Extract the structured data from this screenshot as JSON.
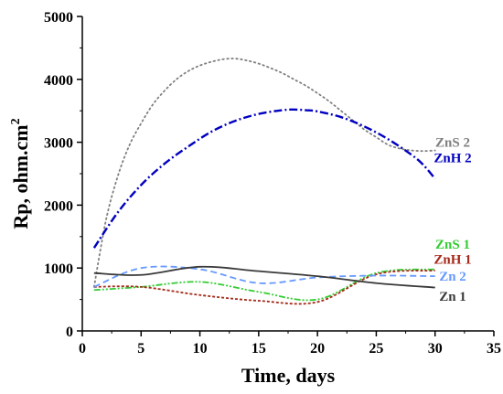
{
  "chart_data": {
    "type": "line",
    "xlabel": "Time, days",
    "ylabel": "Rp, ohm.cm",
    "ylabel_sup": "2",
    "xlim": [
      0,
      35
    ],
    "ylim": [
      0,
      5000
    ],
    "xticks": [
      0,
      5,
      10,
      15,
      20,
      25,
      30,
      35
    ],
    "yticks": [
      0,
      1000,
      2000,
      3000,
      4000,
      5000
    ],
    "grid": false,
    "series": [
      {
        "name": "ZnS 2",
        "color": "#7f7f7f",
        "dash": "dotted",
        "x": [
          1,
          2,
          3,
          4,
          5,
          6,
          7,
          8,
          9,
          10,
          11,
          12,
          13,
          14,
          15,
          16,
          17,
          18,
          19,
          20,
          21,
          22,
          23,
          24,
          25,
          26,
          27,
          28,
          29,
          30
        ],
        "y": [
          700,
          1750,
          2450,
          2950,
          3300,
          3600,
          3820,
          4000,
          4130,
          4220,
          4280,
          4320,
          4330,
          4300,
          4250,
          4180,
          4100,
          4000,
          3900,
          3780,
          3650,
          3500,
          3350,
          3200,
          3080,
          2960,
          2900,
          2870,
          2860,
          2870
        ],
        "label_pos": [
          31.5,
          2930
        ]
      },
      {
        "name": "ZnH 2",
        "color": "#0000c0",
        "dash": "dashdot",
        "x": [
          1,
          3,
          5,
          7,
          9,
          11,
          13,
          15,
          17,
          18,
          19,
          20,
          22,
          24,
          26,
          28,
          29,
          30
        ],
        "y": [
          1320,
          1880,
          2320,
          2660,
          2930,
          3170,
          3340,
          3450,
          3510,
          3520,
          3510,
          3490,
          3400,
          3250,
          3050,
          2800,
          2640,
          2420
        ],
        "label_pos": [
          31.5,
          2680
        ]
      },
      {
        "name": "ZnS 1",
        "color": "#33cc33",
        "dash": "dashdotdot",
        "x": [
          1,
          5,
          10,
          15,
          20,
          25,
          30
        ],
        "y": [
          650,
          700,
          780,
          620,
          500,
          920,
          980
        ],
        "label_pos": [
          31.5,
          1310
        ]
      },
      {
        "name": "ZnH 1",
        "color": "#a52a1a",
        "dash": "shortdash",
        "x": [
          1,
          5,
          10,
          15,
          20,
          25,
          30
        ],
        "y": [
          700,
          700,
          570,
          480,
          460,
          900,
          960
        ],
        "label_pos": [
          31.5,
          1070
        ]
      },
      {
        "name": "Zn 2",
        "color": "#6699ff",
        "dash": "dashed",
        "x": [
          1,
          5,
          10,
          15,
          20,
          25,
          30
        ],
        "y": [
          700,
          1000,
          980,
          760,
          850,
          880,
          870
        ],
        "label_pos": [
          31.5,
          800
        ]
      },
      {
        "name": "Zn 1",
        "color": "#3a3a3a",
        "dash": "solid",
        "x": [
          1,
          5,
          10,
          15,
          20,
          25,
          30
        ],
        "y": [
          920,
          890,
          1020,
          950,
          870,
          760,
          690
        ],
        "label_pos": [
          31.5,
          480
        ]
      }
    ]
  }
}
